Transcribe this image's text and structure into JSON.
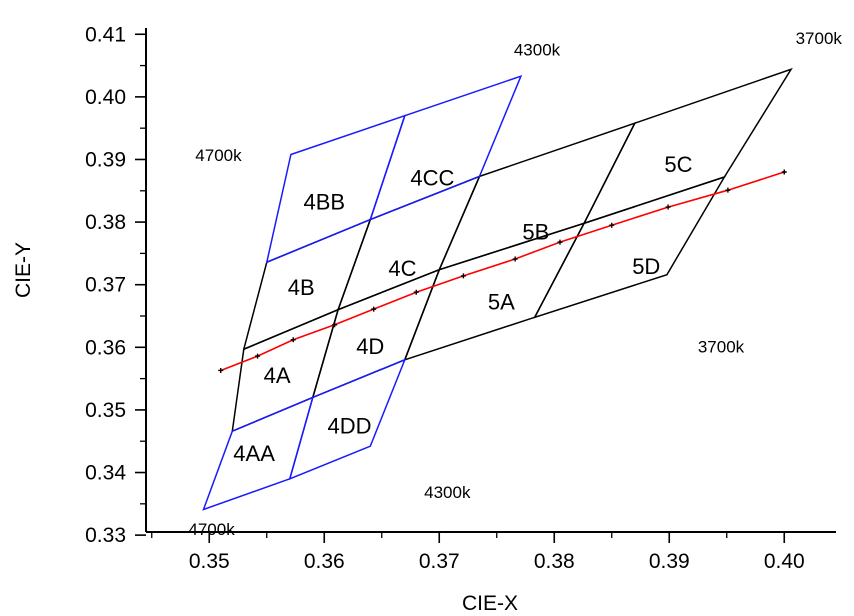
{
  "chart_data": {
    "type": "line",
    "title": "",
    "xlabel": "CIE-X",
    "ylabel": "CIE-Y",
    "xlim": [
      0.3445,
      0.4045
    ],
    "ylim": [
      0.3305,
      0.411
    ],
    "grid": false,
    "x_ticks": [
      0.35,
      0.36,
      0.37,
      0.38,
      0.39,
      0.4
    ],
    "x_tick_labels": [
      "0.35",
      "0.36",
      "0.37",
      "0.38",
      "0.39",
      "0.40"
    ],
    "y_ticks": [
      0.33,
      0.34,
      0.35,
      0.36,
      0.37,
      0.38,
      0.39,
      0.4,
      0.41
    ],
    "y_tick_labels": [
      "0.33",
      "0.34",
      "0.35",
      "0.36",
      "0.37",
      "0.38",
      "0.39",
      "0.40",
      "0.41"
    ],
    "colors": {
      "outer_bins": "#1a1aff",
      "inner_bins": "#000000",
      "locus": "#ff0000"
    },
    "quadrangles": [
      {
        "name": "4AA",
        "color": "outer",
        "points": [
          [
            0.3495,
            0.3341
          ],
          [
            0.352,
            0.3466
          ],
          [
            0.359,
            0.352
          ],
          [
            0.357,
            0.339
          ]
        ]
      },
      {
        "name": "4DD",
        "color": "outer",
        "points": [
          [
            0.357,
            0.339
          ],
          [
            0.359,
            0.352
          ],
          [
            0.367,
            0.358
          ],
          [
            0.364,
            0.3442
          ]
        ]
      },
      {
        "name": "4BB",
        "color": "outer",
        "points": [
          [
            0.3571,
            0.3908
          ],
          [
            0.355,
            0.3736
          ],
          [
            0.364,
            0.3804
          ],
          [
            0.367,
            0.397
          ]
        ]
      },
      {
        "name": "4CC",
        "color": "outer",
        "points": [
          [
            0.367,
            0.397
          ],
          [
            0.364,
            0.3804
          ],
          [
            0.3735,
            0.3873
          ],
          [
            0.3771,
            0.4033
          ]
        ]
      },
      {
        "name": "4A",
        "color": "inner",
        "points": [
          [
            0.352,
            0.3466
          ],
          [
            0.353,
            0.3597
          ],
          [
            0.3612,
            0.366
          ],
          [
            0.359,
            0.352
          ]
        ]
      },
      {
        "name": "4D",
        "color": "inner",
        "points": [
          [
            0.359,
            0.352
          ],
          [
            0.3612,
            0.366
          ],
          [
            0.37,
            0.3724
          ],
          [
            0.367,
            0.358
          ]
        ]
      },
      {
        "name": "4B",
        "color": "inner",
        "points": [
          [
            0.353,
            0.3597
          ],
          [
            0.355,
            0.3736
          ],
          [
            0.364,
            0.3804
          ],
          [
            0.3612,
            0.366
          ]
        ]
      },
      {
        "name": "4C",
        "color": "inner",
        "points": [
          [
            0.3612,
            0.366
          ],
          [
            0.364,
            0.3804
          ],
          [
            0.3735,
            0.3873
          ],
          [
            0.37,
            0.3724
          ]
        ]
      },
      {
        "name": "5A",
        "color": "inner",
        "points": [
          [
            0.367,
            0.358
          ],
          [
            0.37,
            0.3724
          ],
          [
            0.3826,
            0.3798
          ],
          [
            0.3783,
            0.3648
          ]
        ]
      },
      {
        "name": "5D",
        "color": "inner",
        "points": [
          [
            0.3783,
            0.3648
          ],
          [
            0.3826,
            0.3798
          ],
          [
            0.3948,
            0.3872
          ],
          [
            0.3898,
            0.3716
          ]
        ]
      },
      {
        "name": "5B",
        "color": "inner",
        "points": [
          [
            0.37,
            0.3724
          ],
          [
            0.3735,
            0.3873
          ],
          [
            0.387,
            0.3958
          ],
          [
            0.3826,
            0.3798
          ]
        ]
      },
      {
        "name": "5C",
        "color": "inner",
        "points": [
          [
            0.3826,
            0.3798
          ],
          [
            0.387,
            0.3958
          ],
          [
            0.4006,
            0.4044
          ],
          [
            0.3948,
            0.3872
          ]
        ]
      }
    ],
    "bin_labels": [
      {
        "text": "4AA",
        "x": 0.3539,
        "y": 0.3431
      },
      {
        "text": "4DD",
        "x": 0.3622,
        "y": 0.3475
      },
      {
        "text": "4A",
        "x": 0.3559,
        "y": 0.3556
      },
      {
        "text": "4D",
        "x": 0.364,
        "y": 0.3602
      },
      {
        "text": "4B",
        "x": 0.358,
        "y": 0.3696
      },
      {
        "text": "4C",
        "x": 0.3668,
        "y": 0.3727
      },
      {
        "text": "4BB",
        "x": 0.36,
        "y": 0.3833
      },
      {
        "text": "4CC",
        "x": 0.3694,
        "y": 0.3871
      },
      {
        "text": "5A",
        "x": 0.3754,
        "y": 0.3673
      },
      {
        "text": "5B",
        "x": 0.3784,
        "y": 0.3785
      },
      {
        "text": "5D",
        "x": 0.388,
        "y": 0.373
      },
      {
        "text": "5C",
        "x": 0.3908,
        "y": 0.3893
      }
    ],
    "cct_labels": [
      {
        "text": "4700k",
        "x": 0.3508,
        "y": 0.3907
      },
      {
        "text": "4300k",
        "x": 0.3785,
        "y": 0.4076
      },
      {
        "text": "3700k",
        "x": 0.403,
        "y": 0.4094
      },
      {
        "text": "3700k",
        "x": 0.3945,
        "y": 0.3601
      },
      {
        "text": "4300k",
        "x": 0.3707,
        "y": 0.3369
      },
      {
        "text": "4700k",
        "x": 0.3502,
        "y": 0.331
      }
    ],
    "series": [
      {
        "x": [
          0.351,
          0.3542,
          0.3573,
          0.3609,
          0.3643,
          0.368,
          0.3721,
          0.3766,
          0.3805,
          0.385,
          0.3899,
          0.3951,
          0.4
        ],
        "y": [
          0.3563,
          0.3586,
          0.3612,
          0.3636,
          0.3661,
          0.3688,
          0.3714,
          0.3741,
          0.3768,
          0.3795,
          0.3824,
          0.3851,
          0.388
        ]
      }
    ]
  }
}
